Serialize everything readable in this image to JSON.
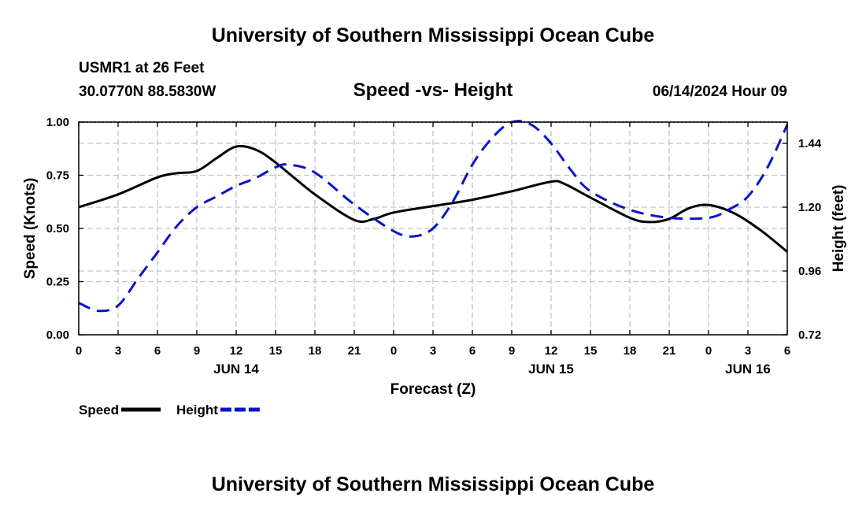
{
  "page_title": "University of Southern Mississippi Ocean Cube",
  "footer_title": "University of Southern Mississippi Ocean Cube",
  "header": {
    "station": "USMR1 at 26 Feet",
    "location": "30.0770N  88.5830W",
    "date_time": "06/14/2024 Hour 09"
  },
  "chart_data": {
    "type": "line",
    "title": "Speed -vs- Height",
    "xlabel": "Forecast (Z)",
    "ylabel": "Speed (Knots)",
    "y2label": "Height (feet)",
    "x_range": [
      0,
      54
    ],
    "ylim": [
      0,
      1
    ],
    "y2lim": [
      0.72,
      1.52
    ],
    "x_ticks": [
      {
        "x": 0,
        "label": "0"
      },
      {
        "x": 3,
        "label": "3"
      },
      {
        "x": 6,
        "label": "6"
      },
      {
        "x": 9,
        "label": "9"
      },
      {
        "x": 12,
        "label": "12"
      },
      {
        "x": 15,
        "label": "15"
      },
      {
        "x": 18,
        "label": "18"
      },
      {
        "x": 21,
        "label": "21"
      },
      {
        "x": 24,
        "label": "0"
      },
      {
        "x": 27,
        "label": "3"
      },
      {
        "x": 30,
        "label": "6"
      },
      {
        "x": 33,
        "label": "9"
      },
      {
        "x": 36,
        "label": "12"
      },
      {
        "x": 39,
        "label": "15"
      },
      {
        "x": 42,
        "label": "18"
      },
      {
        "x": 45,
        "label": "21"
      },
      {
        "x": 48,
        "label": "0"
      },
      {
        "x": 51,
        "label": "3"
      },
      {
        "x": 54,
        "label": "6"
      }
    ],
    "date_labels": [
      {
        "x": 12,
        "label": "JUN 14"
      },
      {
        "x": 36,
        "label": "JUN 15"
      },
      {
        "x": 51,
        "label": "JUN 16"
      }
    ],
    "y_ticks": [
      {
        "v": 0,
        "label": "0.00"
      },
      {
        "v": 0.25,
        "label": "0.25"
      },
      {
        "v": 0.5,
        "label": "0.50"
      },
      {
        "v": 0.75,
        "label": "0.75"
      },
      {
        "v": 1.0,
        "label": "1.00"
      }
    ],
    "y2_ticks": [
      {
        "v": 0.72,
        "label": "0.72"
      },
      {
        "v": 0.96,
        "label": "0.96"
      },
      {
        "v": 1.2,
        "label": "1.20"
      },
      {
        "v": 1.44,
        "label": "1.44"
      }
    ],
    "series": [
      {
        "name": "Speed",
        "axis": "left",
        "color": "#000000",
        "dash": "solid",
        "x": [
          0,
          3,
          6,
          7.5,
          9,
          10.5,
          12,
          13.5,
          15,
          18,
          21,
          22.5,
          24,
          27,
          30,
          33,
          36,
          37,
          39,
          42,
          43.5,
          45,
          46.5,
          48,
          50,
          52,
          54
        ],
        "values": [
          0.6,
          0.66,
          0.74,
          0.76,
          0.77,
          0.83,
          0.885,
          0.87,
          0.81,
          0.66,
          0.54,
          0.545,
          0.575,
          0.605,
          0.635,
          0.675,
          0.72,
          0.71,
          0.645,
          0.55,
          0.53,
          0.545,
          0.595,
          0.61,
          0.57,
          0.49,
          0.39
        ]
      },
      {
        "name": "Height",
        "axis": "right",
        "color": "#0a14c8",
        "dash": "dashed",
        "x": [
          0,
          1.5,
          3,
          4.5,
          6,
          7.5,
          9,
          10.5,
          12,
          13.5,
          15,
          16,
          18,
          21,
          24,
          25.5,
          27,
          28.5,
          30,
          31.5,
          33,
          34.5,
          36,
          37.5,
          39,
          42,
          45,
          48,
          49.5,
          51,
          52.5,
          54
        ],
        "values": [
          0.84,
          0.81,
          0.83,
          0.93,
          1.03,
          1.13,
          1.2,
          1.24,
          1.28,
          1.31,
          1.35,
          1.36,
          1.33,
          1.21,
          1.11,
          1.09,
          1.12,
          1.22,
          1.36,
          1.46,
          1.52,
          1.51,
          1.44,
          1.34,
          1.26,
          1.19,
          1.16,
          1.16,
          1.19,
          1.24,
          1.35,
          1.51
        ]
      }
    ],
    "legend": [
      {
        "label": "Speed",
        "color": "#000000",
        "dash": "solid"
      },
      {
        "label": "Height",
        "color": "#0a14c8",
        "dash": "dashed"
      }
    ]
  }
}
